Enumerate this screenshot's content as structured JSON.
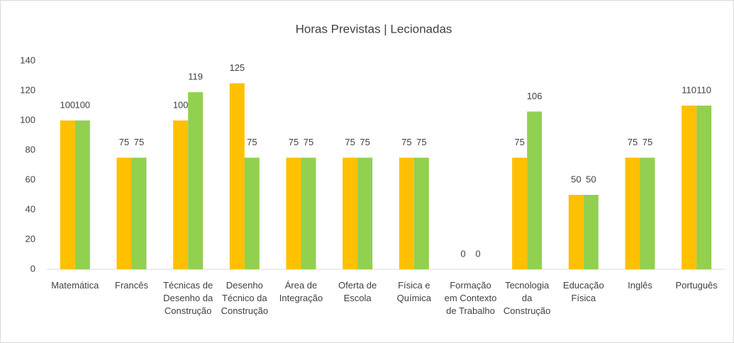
{
  "chart_data": {
    "type": "bar",
    "title": "Horas Previstas | Lecionadas",
    "categories": [
      "Matemática",
      "Francês",
      "Técnicas de Desenho da Construção",
      "Desenho Técnico da Construção",
      "Área de Integração",
      "Oferta de Escola",
      "Física e Química",
      "Formação em Contexto de Trabalho",
      "Tecnologia da Construção",
      "Educação Física",
      "Inglês",
      "Português"
    ],
    "series": [
      {
        "color": "#ffc000",
        "values": [
          100,
          75,
          100,
          125,
          75,
          75,
          75,
          0,
          75,
          50,
          75,
          110
        ]
      },
      {
        "color": "#92d050",
        "values": [
          100,
          75,
          119,
          75,
          75,
          75,
          75,
          0,
          106,
          50,
          75,
          110
        ]
      }
    ],
    "ylim": [
      0,
      140
    ],
    "yticks": [
      0,
      20,
      40,
      60,
      80,
      100,
      120,
      140
    ],
    "grid": false
  }
}
